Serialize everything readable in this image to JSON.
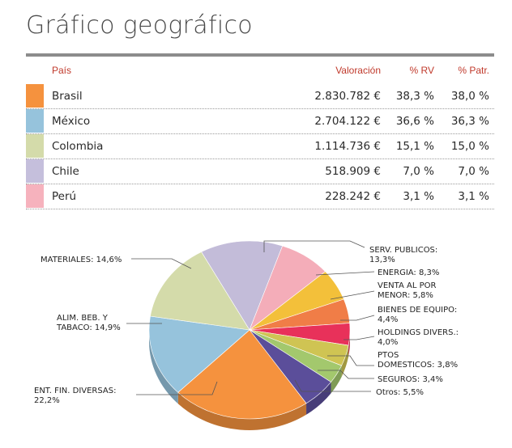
{
  "title": "Gráfico geográfico",
  "table": {
    "headers": {
      "country": "País",
      "valuation": "Valoración",
      "rv": "% RV",
      "patr": "% Patr."
    },
    "rows": [
      {
        "name": "Brasil",
        "valuation": "2.830.782 €",
        "rv": "38,3 %",
        "patr": "38,0 %",
        "color": "#f5923e"
      },
      {
        "name": "México",
        "valuation": "2.704.122 €",
        "rv": "36,6 %",
        "patr": "36,3 %",
        "color": "#96c3dc"
      },
      {
        "name": "Colombia",
        "valuation": "1.114.736 €",
        "rv": "15,1 %",
        "patr": "15,0 %",
        "color": "#d4dbaa"
      },
      {
        "name": "Chile",
        "valuation": "518.909 €",
        "rv": "7,0 %",
        "patr": "7,0 %",
        "color": "#c5bfdc"
      },
      {
        "name": "Perú",
        "valuation": "228.242 €",
        "rv": "3,1 %",
        "patr": "3,1 %",
        "color": "#f6b2bd"
      }
    ]
  },
  "chart_data": {
    "type": "pie",
    "slices": [
      {
        "label": "SERV. PUBLICOS: 13,3%",
        "value": 13.3,
        "color": "#c3bcd9"
      },
      {
        "label": "ENERGIA: 8,3%",
        "value": 8.3,
        "color": "#f4adb9"
      },
      {
        "label": "VENTA AL POR MENOR: 5,8%",
        "value": 5.8,
        "color": "#f3c03a"
      },
      {
        "label": "BIENES DE EQUIPO: 4,4%",
        "value": 4.4,
        "color": "#f07d47"
      },
      {
        "label": "HOLDINGS DIVERS.: 4,0%",
        "value": 4.0,
        "color": "#e8315a"
      },
      {
        "label": "PTOS DOMESTICOS: 3,8%",
        "value": 3.8,
        "color": "#cfc453"
      },
      {
        "label": "SEGUROS: 3,4%",
        "value": 3.4,
        "color": "#a3c86d"
      },
      {
        "label": "Otros: 5,5%",
        "value": 5.5,
        "color": "#5b4e9a"
      },
      {
        "label": "ENT. FIN. DIVERSAS: 22,2%",
        "value": 22.2,
        "color": "#f5923e"
      },
      {
        "label": "ALIM. BEB. Y TABACO: 14,9%",
        "value": 14.9,
        "color": "#96c3dc"
      },
      {
        "label": "MATERIALES: 14,6%",
        "value": 14.6,
        "color": "#d4dbaa"
      }
    ]
  }
}
